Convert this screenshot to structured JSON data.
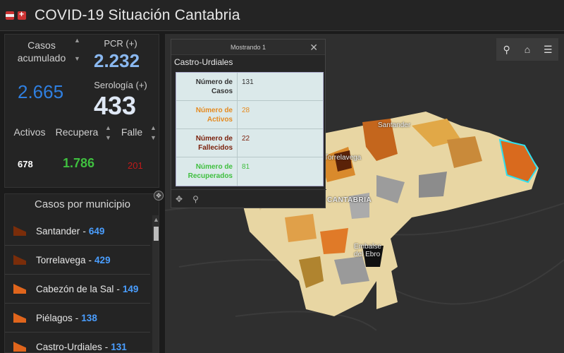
{
  "header": {
    "title": "COVID-19 Situación Cantabria"
  },
  "stats": {
    "casos_label": "Casos acumulado",
    "casos_value": "2.665",
    "pcr_label": "PCR (+)",
    "pcr_value": "2.232",
    "serologia_label": "Serología (+)",
    "serologia_value": "433",
    "activos_label": "Activos",
    "activos_value": "678",
    "recuperados_label": "Recupera",
    "recuperados_value": "1.786",
    "fallecidos_label": "Falle",
    "fallecidos_value": "201"
  },
  "municipios": {
    "title": "Casos por municipio",
    "items": [
      {
        "name": "Santander",
        "count": "649",
        "color": "#7a2d0a"
      },
      {
        "name": "Torrelavega",
        "count": "429",
        "color": "#7a2d0a"
      },
      {
        "name": "Cabezón de la Sal",
        "count": "149",
        "color": "#e0651c"
      },
      {
        "name": "Piélagos",
        "count": "138",
        "color": "#e0651c"
      },
      {
        "name": "Castro-Urdiales",
        "count": "131",
        "color": "#e0651c"
      }
    ]
  },
  "popup": {
    "header": "Mostrando 1",
    "title": "Castro-Urdiales",
    "rows": [
      {
        "key": "Número de Casos",
        "value": "131",
        "color": "#333333"
      },
      {
        "key": "Número de Activos",
        "value": "28",
        "color": "#e58a1f"
      },
      {
        "key": "Número de Fallecidos",
        "value": "22",
        "color": "#7a1f0a"
      },
      {
        "key": "Número de Recuperados",
        "value": "81",
        "color": "#3fbf3f"
      }
    ]
  },
  "map": {
    "labels": {
      "santander": "Santander",
      "torrelavega": "Torrelavega",
      "cantabria": "CANTABRIA",
      "embalse": "Embalse del Ebro"
    }
  },
  "colors": {
    "casos": "#2f7fe0",
    "pcr": "#8ab8f0",
    "serologia": "#dfe8f5",
    "activos": "#ffffff",
    "recuperados": "#3fbf3f",
    "fallecidos": "#c01a1a"
  },
  "icons": [
    "search-icon",
    "home-icon",
    "list-icon",
    "close-icon",
    "pan-icon",
    "zoom-icon",
    "expand-icon"
  ]
}
